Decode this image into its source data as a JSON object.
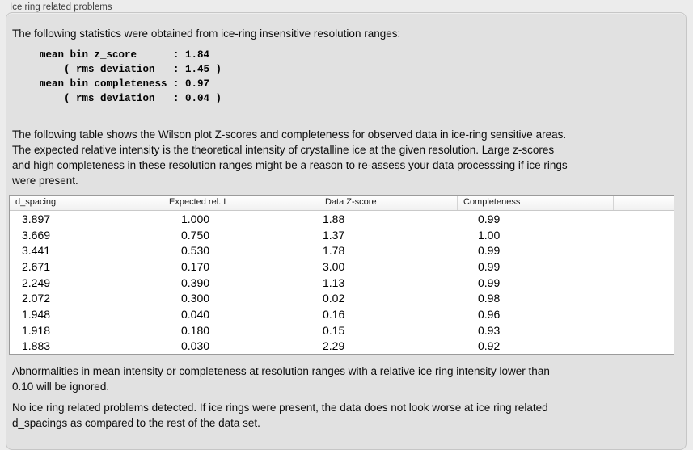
{
  "panel": {
    "title": "Ice ring related problems"
  },
  "intro": {
    "text": "The following statistics were obtained from ice-ring insensitive resolution ranges:",
    "stats_block": "mean bin z_score      : 1.84\n    ( rms deviation   : 1.45 )\nmean bin completeness : 0.97\n    ( rms deviation   : 0.04 )"
  },
  "description": "The following table shows the Wilson plot Z-scores and completeness for observed data in ice-ring sensitive areas.\nThe expected relative intensity is the theoretical intensity of crystalline ice at the given resolution. Large z-scores\nand high completeness in these resolution ranges might be a reason to re-assess your data processsing if ice rings\nwere present.",
  "table": {
    "columns": [
      "d_spacing",
      "Expected rel. I",
      "Data Z-score",
      "Completeness"
    ],
    "rows": [
      [
        "3.897",
        "1.000",
        "1.88",
        "0.99"
      ],
      [
        "3.669",
        "0.750",
        "1.37",
        "1.00"
      ],
      [
        "3.441",
        "0.530",
        "1.78",
        "0.99"
      ],
      [
        "2.671",
        "0.170",
        "3.00",
        "0.99"
      ],
      [
        "2.249",
        "0.390",
        "1.13",
        "0.99"
      ],
      [
        "2.072",
        "0.300",
        "0.02",
        "0.98"
      ],
      [
        "1.948",
        "0.040",
        "0.16",
        "0.96"
      ],
      [
        "1.918",
        "0.180",
        "0.15",
        "0.93"
      ],
      [
        "1.883",
        "0.030",
        "2.29",
        "0.92"
      ]
    ]
  },
  "footnotes": [
    "Abnormalities in mean intensity or completeness at resolution ranges with a relative ice ring intensity lower than\n0.10 will be ignored.",
    "No ice ring related problems detected. If ice rings were present, the data does not look worse at ice ring related\nd_spacings as compared to the rest of the data set."
  ],
  "colors": {
    "page_bg": "#ececec",
    "panel_bg": "#e1e1e1",
    "table_bg": "#ffffff",
    "text": "#0c0c0c"
  }
}
